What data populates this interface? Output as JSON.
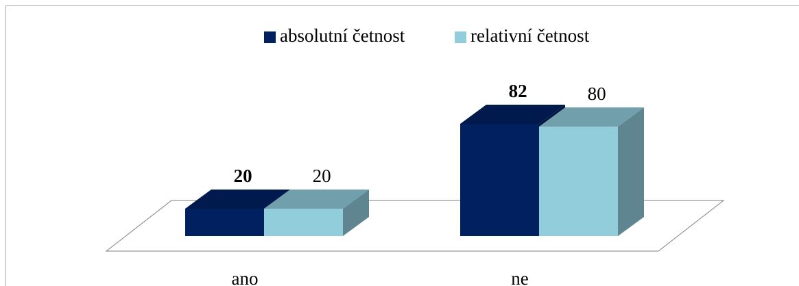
{
  "chart_data": {
    "type": "bar3d",
    "categories": [
      "ano",
      "ne"
    ],
    "series": [
      {
        "name": "absolutní četnost",
        "color": "#002060",
        "top_color": "#001a4d",
        "side_color": "#001540",
        "label_bold": true,
        "values": [
          20,
          82
        ]
      },
      {
        "name": "relativní četnost",
        "color": "#92cddc",
        "top_color": "#729fac",
        "side_color": "#5f8590",
        "label_bold": false,
        "values": [
          20,
          80
        ]
      }
    ],
    "legend": "top"
  }
}
